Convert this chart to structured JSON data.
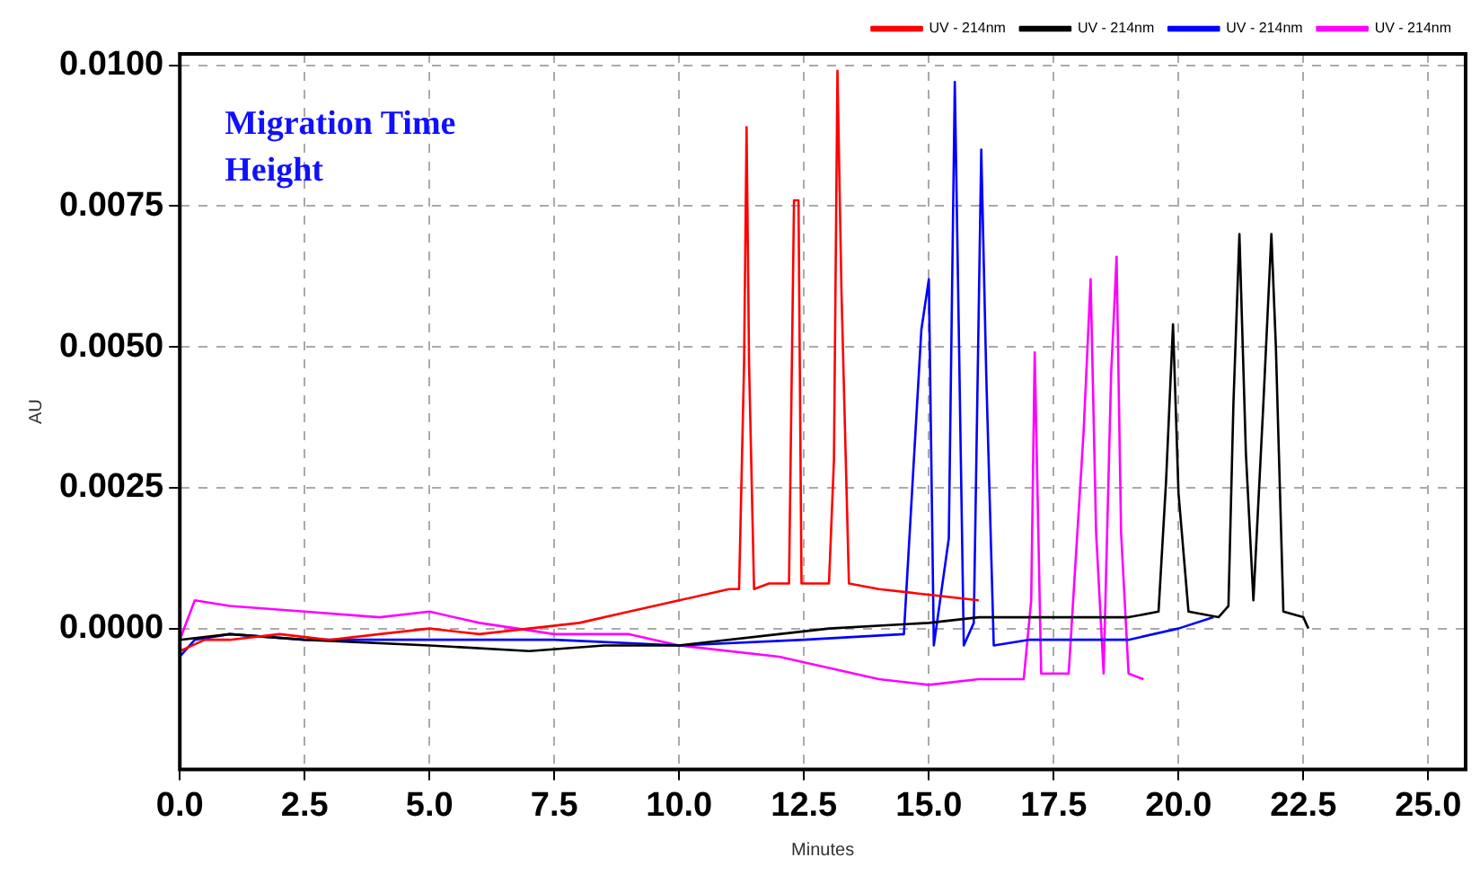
{
  "chart_data": {
    "type": "line",
    "xlabel": "Minutes",
    "ylabel": "AU",
    "annotations": [
      "Migration Time",
      "Height"
    ],
    "xlim": [
      0,
      25.75
    ],
    "ylim": [
      -0.0025,
      0.0102
    ],
    "xticks": [
      {
        "value": 0,
        "label": "0.0"
      },
      {
        "value": 2.5,
        "label": "2.5"
      },
      {
        "value": 5,
        "label": "5.0"
      },
      {
        "value": 7.5,
        "label": "7.5"
      },
      {
        "value": 10,
        "label": "10.0"
      },
      {
        "value": 12.5,
        "label": "12.5"
      },
      {
        "value": 15,
        "label": "15.0"
      },
      {
        "value": 17.5,
        "label": "17.5"
      },
      {
        "value": 20,
        "label": "20.0"
      },
      {
        "value": 22.5,
        "label": "22.5"
      },
      {
        "value": 25,
        "label": "25.0"
      }
    ],
    "yticks": [
      {
        "value": 0,
        "label": "0.0000"
      },
      {
        "value": 0.0025,
        "label": "0.0025"
      },
      {
        "value": 0.005,
        "label": "0.0050"
      },
      {
        "value": 0.0075,
        "label": "0.0075"
      },
      {
        "value": 0.01,
        "label": "0.0100"
      }
    ],
    "grid": true,
    "legend": "top",
    "marker": "none",
    "line_style": "solid",
    "series": [
      {
        "name": "UV - 214nm",
        "color": "#ff0000",
        "x": [
          0,
          0.5,
          1,
          2,
          3,
          4,
          5,
          6,
          7,
          8,
          9,
          10,
          11,
          11.2,
          11.3,
          11.35,
          11.4,
          11.5,
          11.8,
          12.2,
          12.3,
          12.39,
          12.45,
          12.6,
          13.0,
          13.1,
          13.17,
          13.25,
          13.4,
          14,
          15,
          16
        ],
        "values": [
          -0.0004,
          -0.0002,
          -0.0002,
          -0.0001,
          -0.0002,
          -0.0001,
          0,
          -0.0001,
          0,
          0.0001,
          0.0003,
          0.0005,
          0.0007,
          0.0007,
          0.0047,
          0.0089,
          0.0047,
          0.0007,
          0.0008,
          0.0008,
          0.0076,
          0.0076,
          0.0008,
          0.0008,
          0.0008,
          0.003,
          0.0099,
          0.006,
          0.0008,
          0.0007,
          0.0006,
          0.0005
        ]
      },
      {
        "name": "UV - 214nm",
        "color": "#000000",
        "x": [
          0,
          1,
          2.5,
          5,
          7,
          8.5,
          10,
          12,
          13,
          15,
          16,
          17.5,
          19,
          19.6,
          19.75,
          19.89,
          20,
          20.2,
          20.8,
          21.0,
          21.1,
          21.22,
          21.35,
          21.5,
          21.7,
          21.86,
          21.95,
          22.1,
          22.5,
          22.6
        ],
        "values": [
          -0.0002,
          -0.0001,
          -0.0002,
          -0.0003,
          -0.0004,
          -0.0003,
          -0.0003,
          -0.0001,
          0,
          0.0001,
          0.0002,
          0.0002,
          0.0002,
          0.0003,
          0.0026,
          0.0054,
          0.0024,
          0.0003,
          0.0002,
          0.0004,
          0.004,
          0.007,
          0.0031,
          0.0005,
          0.004,
          0.007,
          0.005,
          0.0003,
          0.0002,
          0
        ]
      },
      {
        "name": "UV - 214nm",
        "color": "#0000ff",
        "x": [
          0,
          0.3,
          1,
          2.5,
          5,
          7.5,
          10,
          12.5,
          14.5,
          14.85,
          15.0,
          15.1,
          15.4,
          15.52,
          15.6,
          15.7,
          15.9,
          16.05,
          16.15,
          16.3,
          17,
          19,
          20,
          20.7
        ],
        "values": [
          -0.0005,
          -0.0002,
          -0.0001,
          -0.0002,
          -0.0002,
          -0.0002,
          -0.0003,
          -0.0002,
          -0.0001,
          0.0053,
          0.0062,
          -0.0003,
          0.0016,
          0.0097,
          0.0053,
          -0.0003,
          0.0001,
          0.0085,
          0.0045,
          -0.0003,
          -0.0002,
          -0.0002,
          0,
          0.0002
        ]
      },
      {
        "name": "UV - 214nm",
        "color": "#ff00ff",
        "x": [
          0,
          0.3,
          1,
          2.5,
          4,
          5,
          6,
          7.5,
          9,
          10,
          12,
          13,
          14,
          15,
          16,
          16.9,
          17.05,
          17.12,
          17.25,
          17.8,
          18.1,
          18.24,
          18.35,
          18.5,
          18.65,
          18.76,
          18.85,
          19.0,
          19.3
        ],
        "values": [
          -0.0002,
          0.0005,
          0.0004,
          0.0003,
          0.0002,
          0.0003,
          0.0001,
          -0.0001,
          -0.0001,
          -0.0003,
          -0.0005,
          -0.0007,
          -0.0009,
          -0.001,
          -0.0009,
          -0.0009,
          0.0005,
          0.0049,
          -0.0008,
          -0.0008,
          0.0035,
          0.0062,
          0.0017,
          -0.0008,
          0.0045,
          0.0066,
          0.0017,
          -0.0008,
          -0.0009
        ]
      }
    ]
  }
}
